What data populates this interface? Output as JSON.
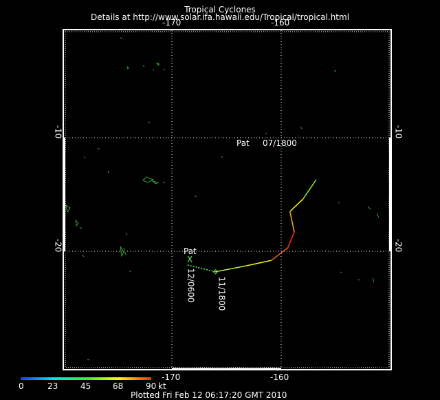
{
  "header": {
    "title": "Tropical Cyclones",
    "details": "Details at http://www.solar.ifa.hawaii.edu/Tropical/tropical.html"
  },
  "axes": {
    "lon_labels": [
      "-170",
      "-160"
    ],
    "lat_labels": [
      "-10",
      "-20"
    ]
  },
  "storm": {
    "name": "Pat",
    "label_start": "07/1800",
    "label_mid": "11/1800",
    "label_end": "12/0600",
    "end_marker": "X"
  },
  "legend": {
    "ticks": [
      "0",
      "23",
      "45",
      "68",
      "90"
    ],
    "unit": "kt",
    "colors": [
      "#0000ff",
      "#00ffff",
      "#00ff00",
      "#ffff00",
      "#ff0000"
    ]
  },
  "footer": {
    "plotted": "Plotted Fri Feb 12 06:17:20 GMT 2010"
  },
  "chart_data": {
    "type": "map",
    "lon_range": [
      -180,
      -150
    ],
    "lat_range": [
      -5,
      -30
    ],
    "grid": "dotted",
    "track": [
      {
        "lon": -156.8,
        "lat": -13.7,
        "color": "#33dd33"
      },
      {
        "lon": -158.0,
        "lat": -15.4,
        "color": "#88ee22"
      },
      {
        "lon": -159.2,
        "lat": -16.5,
        "color": "#ffff00"
      },
      {
        "lon": -158.8,
        "lat": -18.3,
        "color": "#ffaa00"
      },
      {
        "lon": -159.4,
        "lat": -19.7,
        "color": "#ff3300"
      },
      {
        "lon": -160.9,
        "lat": -20.8,
        "color": "#ff6600"
      },
      {
        "lon": -163.3,
        "lat": -21.3,
        "color": "#ffff00"
      },
      {
        "lon": -166.0,
        "lat": -21.8,
        "color": "#ccff33"
      },
      {
        "lon": -168.6,
        "lat": -21.2,
        "color": "#66ee66",
        "dashed": true
      }
    ]
  }
}
